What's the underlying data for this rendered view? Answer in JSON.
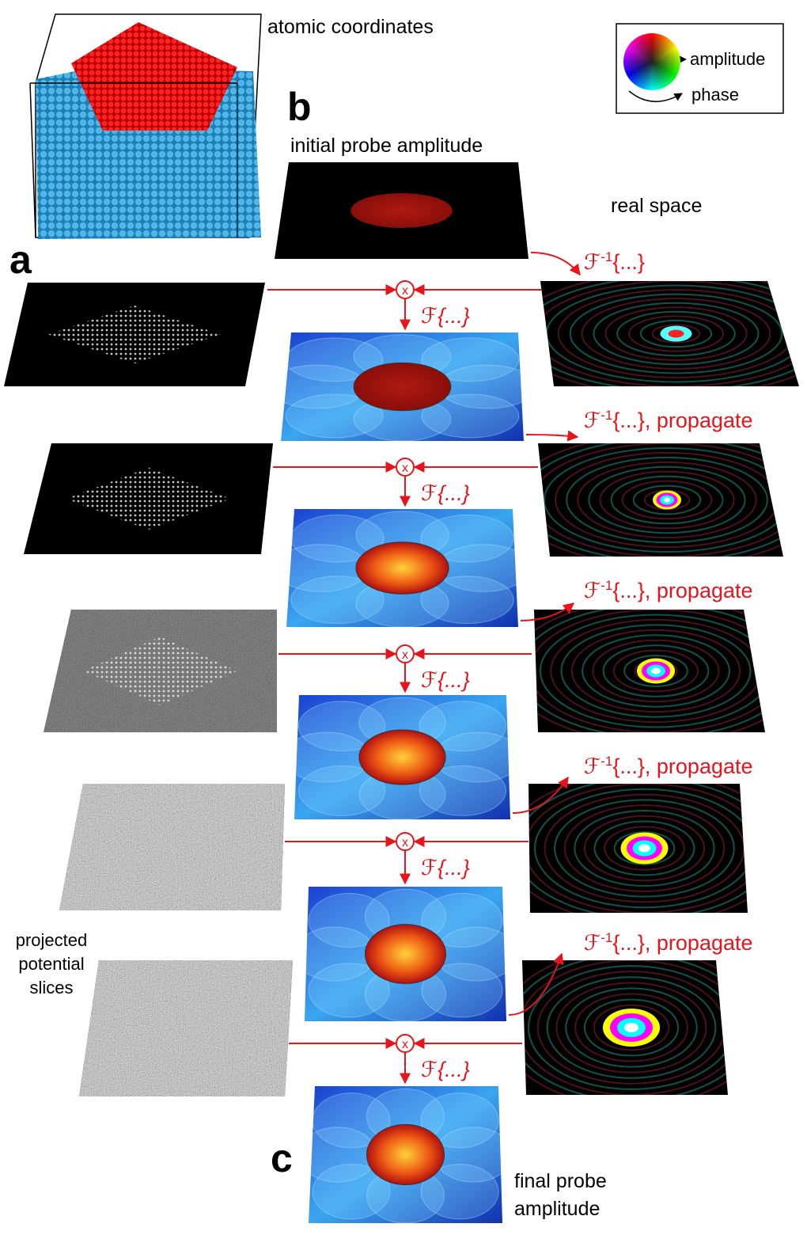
{
  "panel_labels": [
    "a",
    "b",
    "c"
  ],
  "atomic_coordinates": "atomic coordinates",
  "initial_probe_amplitude": "initial probe amplitude",
  "real_space": "real space",
  "legend": {
    "amplitude": "amplitude",
    "phase": "phase"
  },
  "projected_potential_slices": [
    "projected",
    "potential",
    "slices"
  ],
  "final_probe_amplitude": [
    "final probe",
    "amplitude"
  ],
  "steps": [
    {
      "multiply": "x",
      "transform": "ℱ{...}"
    },
    {
      "multiply": "x",
      "transform": "ℱ{...}"
    },
    {
      "multiply": "x",
      "transform": "ℱ{...}"
    },
    {
      "multiply": "x",
      "transform": "ℱ{...}"
    },
    {
      "multiply": "x",
      "transform": "ℱ{...}"
    }
  ],
  "inverse_transforms": [
    {
      "symbol": "ℱ",
      "exponent": "-1",
      "argument": "{...}"
    },
    {
      "symbol": "ℱ",
      "exponent": "-1",
      "argument": "{...}, propagate"
    },
    {
      "symbol": "ℱ",
      "exponent": "-1",
      "argument": "{...}, propagate"
    },
    {
      "symbol": "ℱ",
      "exponent": "-1",
      "argument": "{...}, propagate"
    },
    {
      "symbol": "ℱ",
      "exponent": "-1",
      "argument": "{...}, propagate"
    }
  ]
}
